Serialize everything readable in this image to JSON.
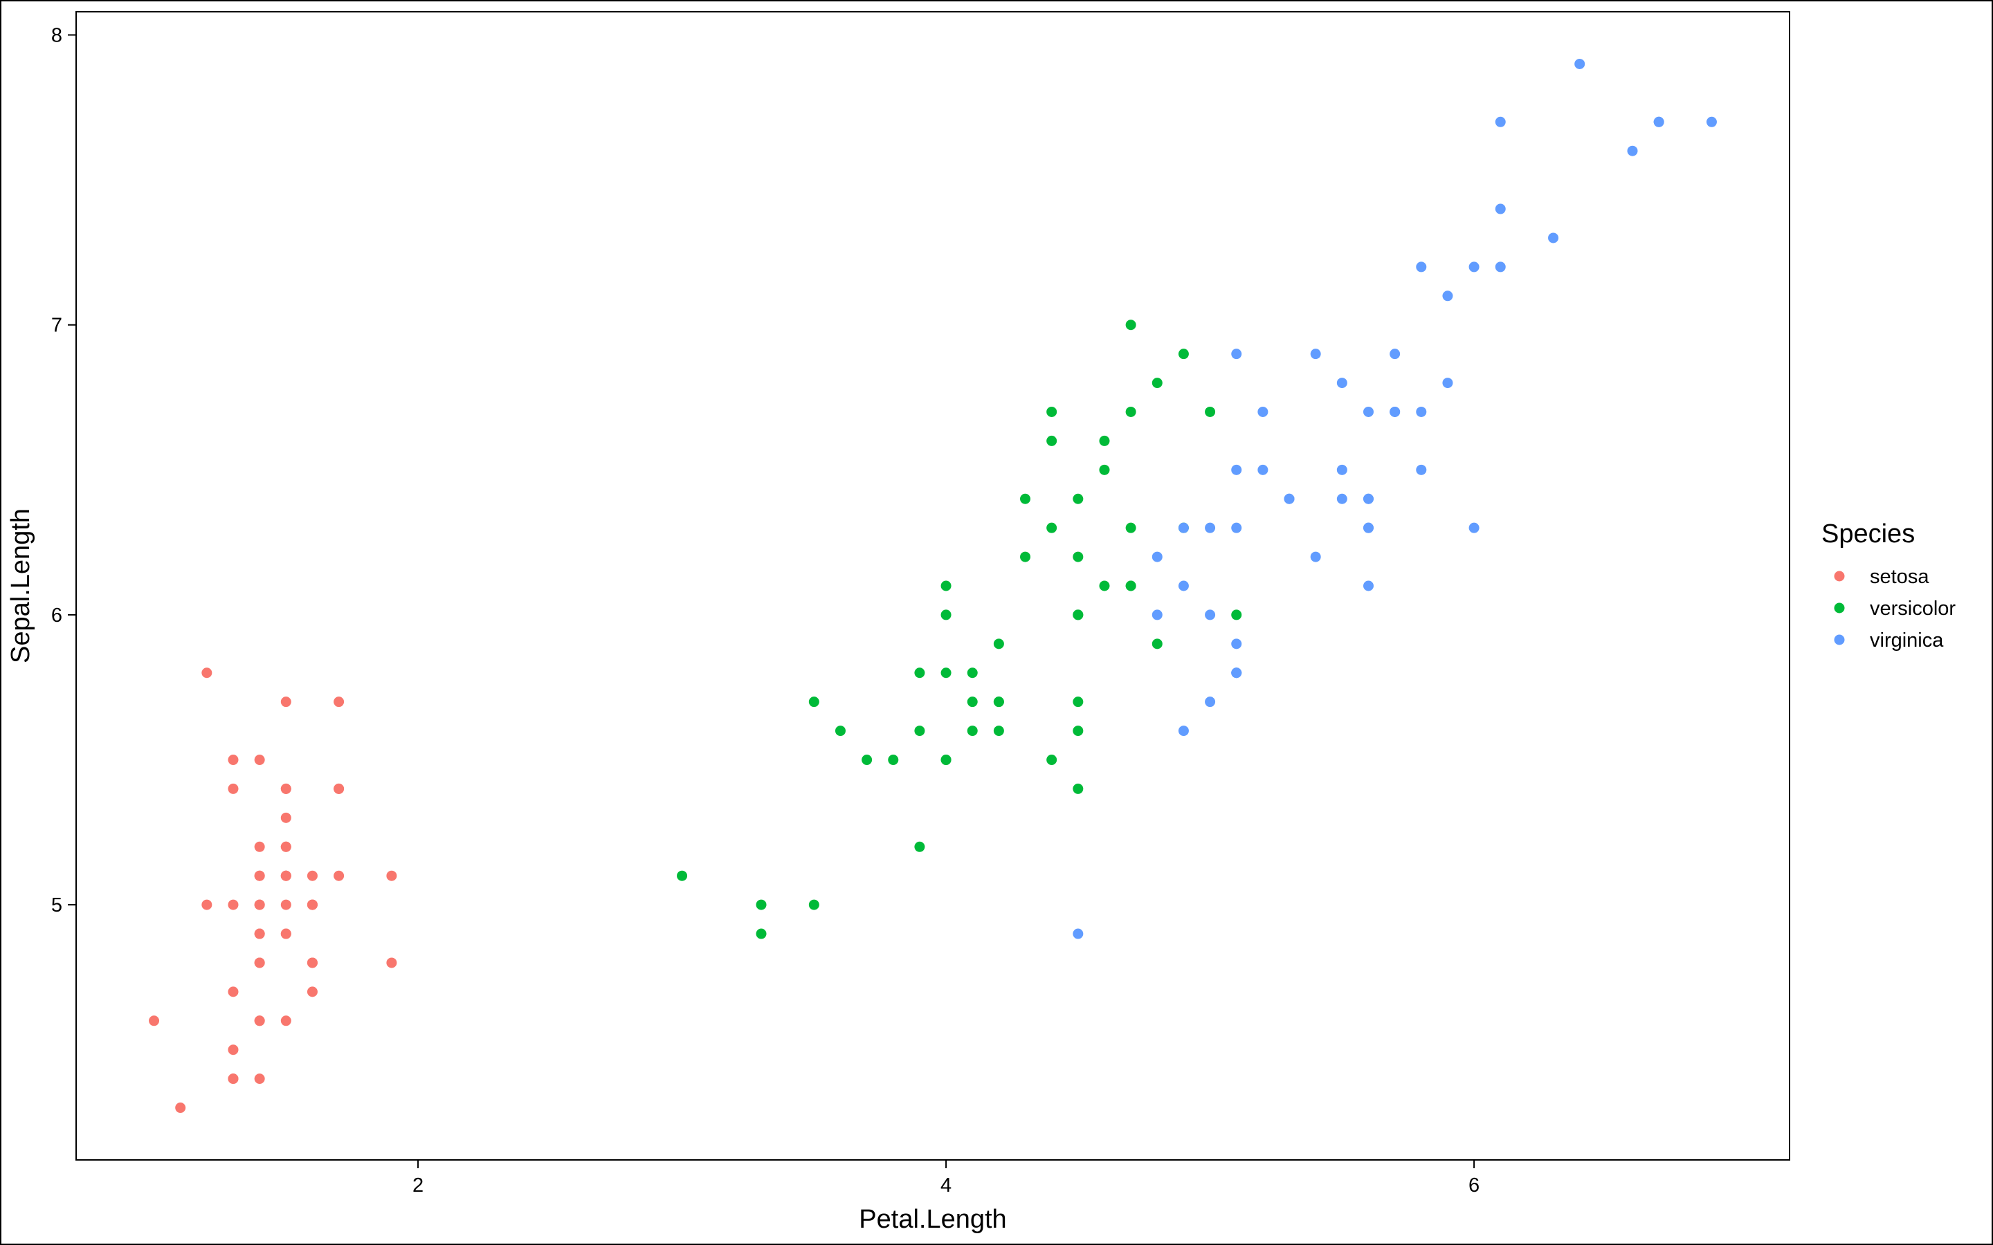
{
  "chart_data": {
    "type": "scatter",
    "x_label": "Petal.Length",
    "y_label": "Sepal.Length",
    "legend_title": "Species",
    "xlim": [
      0.705,
      7.195
    ],
    "ylim": [
      4.12,
      8.08
    ],
    "xticks": [
      2,
      4,
      6
    ],
    "yticks": [
      5,
      6,
      7,
      8
    ],
    "series": [
      {
        "name": "setosa",
        "color": "#F8766D",
        "x": [
          1.4,
          1.4,
          1.3,
          1.5,
          1.4,
          1.7,
          1.4,
          1.5,
          1.4,
          1.5,
          1.5,
          1.6,
          1.4,
          1.1,
          1.2,
          1.5,
          1.3,
          1.4,
          1.7,
          1.5,
          1.7,
          1.5,
          1.0,
          1.7,
          1.9,
          1.6,
          1.6,
          1.5,
          1.4,
          1.6,
          1.6,
          1.5,
          1.5,
          1.4,
          1.5,
          1.2,
          1.3,
          1.4,
          1.3,
          1.5,
          1.3,
          1.3,
          1.3,
          1.6,
          1.9,
          1.4,
          1.6,
          1.4,
          1.5,
          1.4
        ],
        "values": [
          5.1,
          4.9,
          4.7,
          4.6,
          5.0,
          5.4,
          4.6,
          5.0,
          4.4,
          4.9,
          5.4,
          4.8,
          4.8,
          4.3,
          5.8,
          5.7,
          5.4,
          5.1,
          5.7,
          5.1,
          5.4,
          5.1,
          4.6,
          5.1,
          4.8,
          5.0,
          5.0,
          5.2,
          5.2,
          4.7,
          4.8,
          5.4,
          5.2,
          5.5,
          4.9,
          5.0,
          5.5,
          4.9,
          4.4,
          5.1,
          5.0,
          4.5,
          4.4,
          5.0,
          5.1,
          4.8,
          5.1,
          4.6,
          5.3,
          5.0
        ]
      },
      {
        "name": "versicolor",
        "color": "#00BA38",
        "x": [
          4.7,
          4.5,
          4.9,
          4.0,
          4.6,
          4.5,
          4.7,
          3.3,
          4.6,
          3.9,
          3.5,
          4.2,
          4.0,
          4.7,
          3.6,
          4.4,
          4.5,
          4.1,
          4.5,
          3.9,
          4.8,
          4.0,
          4.9,
          4.7,
          4.3,
          4.4,
          4.8,
          5.0,
          4.5,
          3.5,
          3.8,
          3.7,
          3.9,
          5.1,
          4.5,
          4.5,
          4.7,
          4.4,
          4.1,
          4.0,
          4.4,
          4.6,
          4.0,
          3.3,
          4.2,
          4.2,
          4.2,
          4.3,
          3.0,
          4.1
        ],
        "values": [
          7.0,
          6.4,
          6.9,
          5.5,
          6.5,
          5.7,
          6.3,
          4.9,
          6.6,
          5.2,
          5.0,
          5.9,
          6.0,
          6.1,
          5.6,
          6.7,
          5.6,
          5.8,
          6.2,
          5.6,
          5.9,
          6.1,
          6.3,
          6.1,
          6.4,
          6.6,
          6.8,
          6.7,
          6.0,
          5.7,
          5.5,
          5.5,
          5.8,
          6.0,
          5.4,
          6.0,
          6.7,
          6.3,
          5.6,
          5.5,
          5.5,
          6.1,
          5.8,
          5.0,
          5.6,
          5.7,
          5.7,
          6.2,
          5.1,
          5.7
        ]
      },
      {
        "name": "virginica",
        "color": "#619CFF",
        "x": [
          6.0,
          5.1,
          5.9,
          5.6,
          5.8,
          6.6,
          4.5,
          6.3,
          5.8,
          6.1,
          5.1,
          5.3,
          5.5,
          5.0,
          5.1,
          5.3,
          5.5,
          6.7,
          6.9,
          5.0,
          5.7,
          4.9,
          6.7,
          4.9,
          5.7,
          6.0,
          4.8,
          4.9,
          5.6,
          5.8,
          6.1,
          6.4,
          5.6,
          5.1,
          5.6,
          6.1,
          5.6,
          5.5,
          4.8,
          5.4,
          5.6,
          5.1,
          5.1,
          5.9,
          5.7,
          5.2,
          5.0,
          5.2,
          5.4,
          5.1
        ],
        "values": [
          6.3,
          5.8,
          7.1,
          6.3,
          6.5,
          7.6,
          4.9,
          7.3,
          6.7,
          7.2,
          6.5,
          6.4,
          6.8,
          5.7,
          5.8,
          6.4,
          6.5,
          7.7,
          7.7,
          6.0,
          6.9,
          5.6,
          7.7,
          6.3,
          6.7,
          7.2,
          6.2,
          6.1,
          6.4,
          7.2,
          7.4,
          7.9,
          6.4,
          6.3,
          6.1,
          7.7,
          6.3,
          6.4,
          6.0,
          6.9,
          6.7,
          6.9,
          5.8,
          6.8,
          6.7,
          6.7,
          6.3,
          6.5,
          6.2,
          5.9
        ]
      }
    ]
  }
}
